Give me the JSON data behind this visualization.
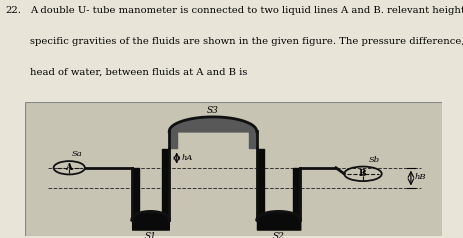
{
  "title_number": "22.",
  "q_line1": "A double U- tube manometer is connected to two liquid lines A and B. relevant heights and",
  "q_line2": "specific gravities of the fluids are shown in the given figure. The pressure difference, in",
  "q_line3": "head of water, between fluids at A and B is",
  "text_color": "#000000",
  "fig_bg": "#e8e4d8",
  "diagram_bg": "#c8c4b4",
  "tube_color": "#111111",
  "fluid_dark": "#0a0a0a",
  "fluid_gray": "#585858",
  "wall_bg": "#aaaaaa",
  "label_Sa": "Sa",
  "label_Sb": "Sb",
  "label_S1": "S1",
  "label_S2": "S2",
  "label_S3": "S3",
  "label_hA": "hA",
  "label_hB": "hB",
  "label_A": "A",
  "label_B": "B",
  "tube_lw": 2.0
}
